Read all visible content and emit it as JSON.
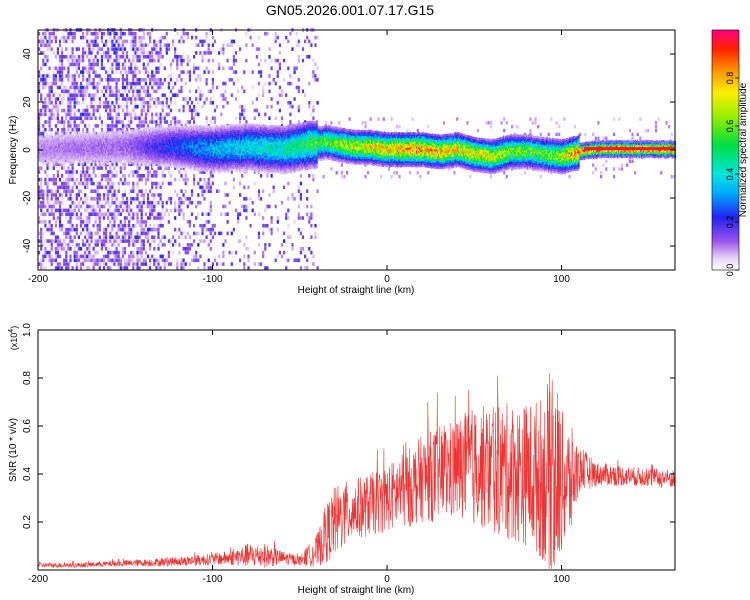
{
  "figure": {
    "title": "GN05.2026.001.07.17.G15"
  },
  "chart_data": [
    {
      "type": "heatmap",
      "title": "GN05.2026.001.07.17.G15",
      "xlabel": "Height of straight line (km)",
      "ylabel": "Frequency (Hz)",
      "xlim": [
        -200,
        165
      ],
      "ylim": [
        -50,
        50
      ],
      "xticks": [
        -200,
        -100,
        0,
        100
      ],
      "xtick_labels": [
        "-200",
        "-100",
        "0",
        "100"
      ],
      "yticks": [
        -40,
        -20,
        0,
        20,
        40
      ],
      "ytick_labels": [
        "-40",
        "-20",
        "0",
        "20",
        "40"
      ],
      "colorbar": {
        "label": "Normalized spectral amplitude",
        "range": [
          0,
          1
        ],
        "ticks": [
          0.0,
          0.2,
          0.4,
          0.6,
          0.8
        ],
        "tick_labels": [
          "0.0",
          "0.2",
          "0.4",
          "0.6",
          "0.8"
        ]
      },
      "ridge": {
        "description_points_x": [
          -200,
          -150,
          -120,
          -100,
          -80,
          -60,
          -45,
          -35,
          -20,
          -10,
          0,
          10,
          20,
          30,
          40,
          50,
          60,
          70,
          80,
          90,
          100,
          110,
          120,
          165
        ],
        "center_hz": [
          0,
          1,
          1,
          0,
          1,
          0,
          2,
          3,
          1,
          1,
          0,
          0,
          0,
          -1,
          0,
          -2,
          -3,
          -1,
          -1,
          -2,
          -3,
          -1,
          0,
          0
        ],
        "peak_amplitude": [
          0.1,
          0.12,
          0.25,
          0.35,
          0.4,
          0.45,
          0.55,
          0.6,
          0.7,
          0.75,
          0.8,
          0.85,
          0.85,
          0.8,
          0.78,
          0.75,
          0.7,
          0.65,
          0.6,
          0.6,
          0.7,
          0.9,
          0.95,
          0.95
        ]
      }
    },
    {
      "type": "line",
      "title": "",
      "xlabel": "Height of straight line (km)",
      "ylabel": "SNR (10 * v/v)",
      "y_multiplier": "(x10",
      "y_multiplier_exp": "4",
      "y_multiplier_close": ")",
      "xlim": [
        -200,
        165
      ],
      "ylim": [
        0,
        1.0
      ],
      "xticks": [
        -200,
        -100,
        0,
        100
      ],
      "xtick_labels": [
        "-200",
        "-100",
        "0",
        "100"
      ],
      "yticks": [
        0.2,
        0.4,
        0.6,
        0.8,
        1.0
      ],
      "ytick_labels": [
        "0.2",
        "0.4",
        "0.6",
        "0.8",
        "1.0"
      ],
      "series": [
        {
          "name": "SNR",
          "color": "#ee3333",
          "x": [
            -200,
            -180,
            -160,
            -140,
            -120,
            -100,
            -90,
            -80,
            -70,
            -60,
            -50,
            -40,
            -35,
            -30,
            -20,
            -10,
            0,
            10,
            20,
            30,
            40,
            50,
            60,
            70,
            80,
            90,
            95,
            100,
            105,
            110,
            120,
            140,
            165
          ],
          "mean": [
            0.02,
            0.02,
            0.025,
            0.03,
            0.035,
            0.045,
            0.05,
            0.06,
            0.06,
            0.05,
            0.04,
            0.08,
            0.15,
            0.2,
            0.25,
            0.27,
            0.3,
            0.33,
            0.38,
            0.4,
            0.42,
            0.43,
            0.42,
            0.41,
            0.4,
            0.38,
            0.38,
            0.37,
            0.36,
            0.42,
            0.4,
            0.39,
            0.38
          ],
          "spread": [
            0.01,
            0.01,
            0.012,
            0.015,
            0.02,
            0.025,
            0.03,
            0.05,
            0.05,
            0.03,
            0.02,
            0.07,
            0.12,
            0.15,
            0.13,
            0.13,
            0.14,
            0.16,
            0.18,
            0.2,
            0.22,
            0.25,
            0.27,
            0.29,
            0.3,
            0.35,
            0.5,
            0.3,
            0.25,
            0.1,
            0.05,
            0.04,
            0.04
          ]
        }
      ]
    }
  ]
}
